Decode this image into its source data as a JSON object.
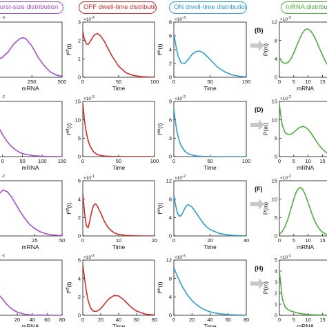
{
  "headers": [
    {
      "text": "urst-size distribution",
      "color": "#a64dd1",
      "left": -8,
      "width": 100
    },
    {
      "text": "OFF dwell-time distribution",
      "color": "#d32a2a",
      "left": 114,
      "width": 113
    },
    {
      "text": "ON dwell-time distribution",
      "color": "#2a9fd0",
      "left": 245,
      "width": 113
    },
    {
      "text": "mRNA distribution",
      "color": "#4caf3a",
      "left": 407,
      "width": 90
    }
  ],
  "arrow_color": "#c8c8c8",
  "chart_data": [
    {
      "type": "line",
      "color": "#a64dd1",
      "mult": "-3",
      "xlabel": "mRNA",
      "ylabel": "",
      "xlim": [
        -25,
        500
      ],
      "ylim": [
        0,
        6
      ],
      "xticks": [
        250,
        500
      ],
      "yticks": [],
      "x": [
        -25,
        0,
        50,
        100,
        150,
        175,
        200,
        250,
        300,
        350,
        400,
        450,
        500
      ],
      "y": [
        2.0,
        2.1,
        2.7,
        3.6,
        4.2,
        4.3,
        4.2,
        3.4,
        2.2,
        1.3,
        0.6,
        0.25,
        0.1
      ]
    },
    {
      "type": "line",
      "color": "#d32a2a",
      "mult": "-2",
      "xlabel": "Time",
      "ylabel": "f^off(t)",
      "xlim": [
        0,
        100
      ],
      "ylim": [
        0,
        3
      ],
      "xticks": [
        0,
        50,
        100
      ],
      "yticks": [
        0,
        1,
        2,
        3
      ],
      "x": [
        0,
        2,
        5,
        8,
        12,
        16,
        20,
        25,
        30,
        40,
        50,
        60,
        70,
        80,
        90,
        100
      ],
      "y": [
        2.5,
        2.1,
        1.8,
        1.8,
        2.05,
        2.3,
        2.38,
        2.25,
        1.95,
        1.2,
        0.6,
        0.25,
        0.1,
        0.04,
        0.01,
        0
      ]
    },
    {
      "type": "line",
      "color": "#2a9fd0",
      "mult": "-3",
      "xlabel": "Time",
      "ylabel": "f^on(t)",
      "xlim": [
        0,
        100
      ],
      "ylim": [
        0,
        8
      ],
      "xticks": [
        0,
        50,
        100
      ],
      "yticks": [
        0,
        2,
        4,
        6,
        8
      ],
      "x": [
        0,
        3,
        6,
        10,
        15,
        20,
        25,
        30,
        35,
        40,
        50,
        60,
        70,
        80,
        90,
        100
      ],
      "y": [
        6.2,
        4.5,
        3.0,
        2.1,
        2.0,
        2.6,
        3.3,
        3.7,
        3.8,
        3.6,
        2.6,
        1.5,
        0.8,
        0.35,
        0.15,
        0.05
      ]
    },
    {
      "type": "line",
      "color": "#4caf3a",
      "mult": "-2",
      "panel": "(B)",
      "xlabel": "mRNA",
      "ylabel": "P(m)",
      "xlim": [
        0,
        18
      ],
      "ylim": [
        0,
        12
      ],
      "xticks": [
        0,
        5,
        10,
        15
      ],
      "yticks": [
        0,
        4,
        8,
        12
      ],
      "x": [
        0,
        1,
        2,
        3,
        4,
        5,
        6,
        7,
        8,
        9,
        10,
        11,
        12,
        13,
        14,
        15,
        16,
        17,
        18
      ],
      "y": [
        4.2,
        3.3,
        3.0,
        3.2,
        4.0,
        5.3,
        6.8,
        8.3,
        9.6,
        10.4,
        10.5,
        10.0,
        9.0,
        7.7,
        6.2,
        4.8,
        3.5,
        2.4,
        1.6
      ]
    },
    {
      "type": "line",
      "color": "#a64dd1",
      "mult": "-2",
      "xlabel": "mRNA",
      "ylabel": "",
      "xlim": [
        -10,
        150
      ],
      "ylim": [
        0,
        8
      ],
      "xticks": [
        0,
        50,
        100,
        150
      ],
      "yticks": [],
      "x": [
        -10,
        0,
        10,
        20,
        30,
        40,
        50,
        60,
        80,
        100,
        120,
        150
      ],
      "y": [
        4.2,
        3.2,
        2.3,
        1.6,
        1.1,
        0.7,
        0.45,
        0.3,
        0.12,
        0.05,
        0.02,
        0
      ]
    },
    {
      "type": "line",
      "color": "#d32a2a",
      "mult": "-2",
      "xlabel": "Time",
      "ylabel": "f^off(t)",
      "xlim": [
        0,
        100
      ],
      "ylim": [
        0,
        15
      ],
      "xticks": [
        0,
        50,
        100
      ],
      "yticks": [
        0,
        5,
        10,
        15
      ],
      "x": [
        0,
        2,
        4,
        6,
        8,
        10,
        15,
        20,
        25,
        30,
        40,
        50,
        60,
        80,
        100
      ],
      "y": [
        14.5,
        10.5,
        7.6,
        5.5,
        4.0,
        2.9,
        1.3,
        0.6,
        0.3,
        0.15,
        0.05,
        0.02,
        0,
        0,
        0
      ]
    },
    {
      "type": "line",
      "color": "#2a9fd0",
      "mult": "-2",
      "xlabel": "Time",
      "ylabel": "f^on(t)",
      "xlim": [
        0,
        100
      ],
      "ylim": [
        0,
        9
      ],
      "xticks": [
        0,
        50,
        100
      ],
      "yticks": [
        0,
        3,
        6,
        9
      ],
      "x": [
        0,
        2,
        4,
        6,
        8,
        10,
        15,
        20,
        30,
        40,
        50,
        60,
        80,
        100
      ],
      "y": [
        7.8,
        5.8,
        4.3,
        3.2,
        2.4,
        1.8,
        0.9,
        0.45,
        0.12,
        0.03,
        0.01,
        0,
        0,
        0
      ]
    },
    {
      "type": "line",
      "color": "#4caf3a",
      "mult": "-2",
      "panel": "(D)",
      "xlabel": "mRNA",
      "ylabel": "P(m)",
      "xlim": [
        0,
        18
      ],
      "ylim": [
        0,
        15
      ],
      "xticks": [
        0,
        5,
        10,
        15
      ],
      "yticks": [
        0,
        5,
        10,
        15
      ],
      "x": [
        0,
        1,
        2,
        3,
        4,
        5,
        6,
        7,
        8,
        9,
        10,
        11,
        12,
        13,
        14,
        15,
        16,
        17,
        18
      ],
      "y": [
        14.0,
        8.5,
        6.5,
        6.0,
        6.1,
        6.6,
        7.3,
        7.9,
        8.2,
        8.0,
        7.4,
        6.4,
        5.2,
        4.0,
        2.9,
        2.0,
        1.3,
        0.8,
        0.5
      ]
    },
    {
      "type": "line",
      "color": "#a64dd1",
      "mult": "-2",
      "xlabel": "mRNA",
      "ylabel": "",
      "xlim": [
        -8,
        50
      ],
      "ylim": [
        0,
        6
      ],
      "xticks": [
        25,
        50
      ],
      "yticks": [],
      "x": [
        -8,
        -4,
        0,
        4,
        8,
        12,
        16,
        20,
        25,
        30,
        35,
        40,
        50
      ],
      "y": [
        4.5,
        5.0,
        4.8,
        4.2,
        3.4,
        2.6,
        1.9,
        1.3,
        0.8,
        0.45,
        0.25,
        0.12,
        0.03
      ]
    },
    {
      "type": "line",
      "color": "#d32a2a",
      "mult": "-1",
      "xlabel": "Time",
      "ylabel": "f^off(t)",
      "xlim": [
        0,
        20
      ],
      "ylim": [
        0,
        6
      ],
      "xticks": [
        0,
        10,
        20
      ],
      "yticks": [
        0,
        2,
        4,
        6
      ],
      "x": [
        0,
        0.5,
        1,
        1.5,
        2,
        2.5,
        3,
        3.5,
        4,
        5,
        6,
        7,
        8,
        9,
        10,
        12,
        14,
        16,
        18,
        20
      ],
      "y": [
        4.6,
        2.5,
        1.1,
        0.9,
        1.7,
        2.7,
        3.3,
        3.5,
        3.3,
        2.5,
        1.6,
        0.95,
        0.55,
        0.3,
        0.17,
        0.05,
        0.02,
        0,
        0,
        0
      ]
    },
    {
      "type": "line",
      "color": "#2a9fd0",
      "mult": "-2",
      "xlabel": "Time",
      "ylabel": "f^on(t)",
      "xlim": [
        0,
        40
      ],
      "ylim": [
        0,
        12
      ],
      "xticks": [
        0,
        20,
        40
      ],
      "yticks": [
        0,
        4,
        8,
        12
      ],
      "x": [
        0,
        1,
        2,
        3,
        4,
        5,
        6,
        7,
        8,
        10,
        12,
        14,
        16,
        18,
        20,
        25,
        30,
        35,
        40
      ],
      "y": [
        8.8,
        6.6,
        5.0,
        4.3,
        4.4,
        5.1,
        6.0,
        6.6,
        6.8,
        6.3,
        5.2,
        4.0,
        2.9,
        2.0,
        1.4,
        0.55,
        0.2,
        0.07,
        0.02
      ]
    },
    {
      "type": "line",
      "color": "#4caf3a",
      "mult": "-2",
      "panel": "(F)",
      "xlabel": "mRNA",
      "ylabel": "P(m)",
      "xlim": [
        0,
        18
      ],
      "ylim": [
        0,
        15
      ],
      "xticks": [
        0,
        5,
        10,
        15
      ],
      "yticks": [
        0,
        5,
        10,
        15
      ],
      "x": [
        0,
        1,
        2,
        3,
        4,
        5,
        6,
        7,
        8,
        9,
        10,
        11,
        12,
        13,
        14,
        15,
        16,
        17,
        18
      ],
      "y": [
        0.5,
        1.2,
        2.6,
        4.7,
        7.3,
        10.0,
        12.2,
        13.2,
        12.8,
        11.2,
        9.0,
        6.7,
        4.6,
        3.0,
        1.8,
        1.0,
        0.55,
        0.3,
        0.15
      ]
    },
    {
      "type": "line",
      "color": "#a64dd1",
      "mult": "-2",
      "xlabel": "mRNA",
      "ylabel": "",
      "xlim": [
        -5,
        80
      ],
      "ylim": [
        0,
        8
      ],
      "xticks": [
        20,
        40,
        60,
        80
      ],
      "yticks": [],
      "x": [
        -5,
        0,
        5,
        10,
        15,
        20,
        30,
        40,
        60,
        80
      ],
      "y": [
        3.0,
        2.4,
        1.7,
        1.15,
        0.75,
        0.45,
        0.15,
        0.05,
        0.01,
        0
      ]
    },
    {
      "type": "line",
      "color": "#d32a2a",
      "mult": "-2",
      "xlabel": "Time",
      "ylabel": "f^off(t)",
      "xlim": [
        0,
        80
      ],
      "ylim": [
        0,
        6
      ],
      "xticks": [
        0,
        20,
        40,
        60,
        80
      ],
      "yticks": [
        0,
        2,
        4,
        6
      ],
      "x": [
        0,
        2,
        4,
        6,
        8,
        10,
        12,
        15,
        18,
        22,
        26,
        30,
        35,
        40,
        45,
        50,
        55,
        60,
        70,
        80
      ],
      "y": [
        5.5,
        4.0,
        2.6,
        1.6,
        0.95,
        0.6,
        0.45,
        0.42,
        0.55,
        0.95,
        1.45,
        1.85,
        2.15,
        2.1,
        1.75,
        1.25,
        0.8,
        0.45,
        0.12,
        0.03
      ]
    },
    {
      "type": "line",
      "color": "#2a9fd0",
      "mult": "-2",
      "xlabel": "Time",
      "ylabel": "f^on(t)",
      "xlim": [
        0,
        80
      ],
      "ylim": [
        0,
        12
      ],
      "xticks": [
        0,
        20,
        40,
        60,
        80
      ],
      "yticks": [
        0,
        4,
        8,
        12
      ],
      "x": [
        0,
        5,
        10,
        15,
        20,
        25,
        30,
        35,
        40,
        50,
        60,
        70,
        80
      ],
      "y": [
        10.3,
        8.0,
        6.0,
        4.4,
        3.2,
        2.3,
        1.6,
        1.1,
        0.75,
        0.35,
        0.15,
        0.07,
        0.03
      ]
    },
    {
      "type": "line",
      "color": "#4caf3a",
      "mult": "-1",
      "panel": "(H)",
      "xlabel": "mRNA",
      "ylabel": "P(m)",
      "xlim": [
        0,
        18
      ],
      "ylim": [
        0,
        5
      ],
      "xticks": [
        0,
        5,
        10,
        15
      ],
      "yticks": [
        0,
        1,
        2,
        3,
        4,
        5
      ],
      "x": [
        0,
        0.5,
        1,
        2,
        3,
        4,
        5,
        6,
        7,
        8,
        10,
        12,
        15,
        18
      ],
      "y": [
        4.0,
        2.8,
        1.5,
        0.75,
        0.5,
        0.38,
        0.3,
        0.23,
        0.18,
        0.13,
        0.07,
        0.04,
        0.02,
        0.01
      ]
    }
  ]
}
